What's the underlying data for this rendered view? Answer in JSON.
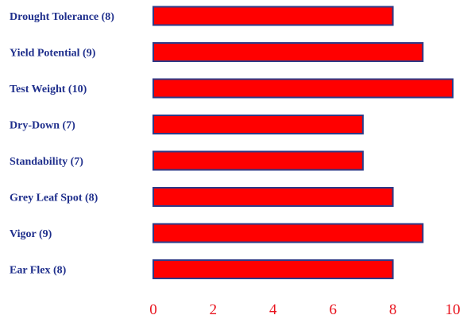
{
  "chart_data": {
    "type": "bar",
    "orientation": "horizontal",
    "categories": [
      "Drought Tolerance (8)",
      "Yield Potential (9)",
      "Test Weight (10)",
      "Dry-Down (7)",
      "Standability (7)",
      "Grey Leaf Spot (8)",
      "Vigor (9)",
      "Ear Flex (8)"
    ],
    "values": [
      8,
      9,
      10,
      7,
      7,
      8,
      9,
      8
    ],
    "xlim": [
      0,
      10
    ],
    "xticks": [
      "0",
      "2",
      "4",
      "6",
      "8",
      "10"
    ],
    "grid": false,
    "legend": "none",
    "colors": {
      "bar_fill": "#ff0000",
      "bar_stroke": "#2e3a87",
      "category_label": "#1f2f8c",
      "tick_label": "#e8141e"
    }
  }
}
